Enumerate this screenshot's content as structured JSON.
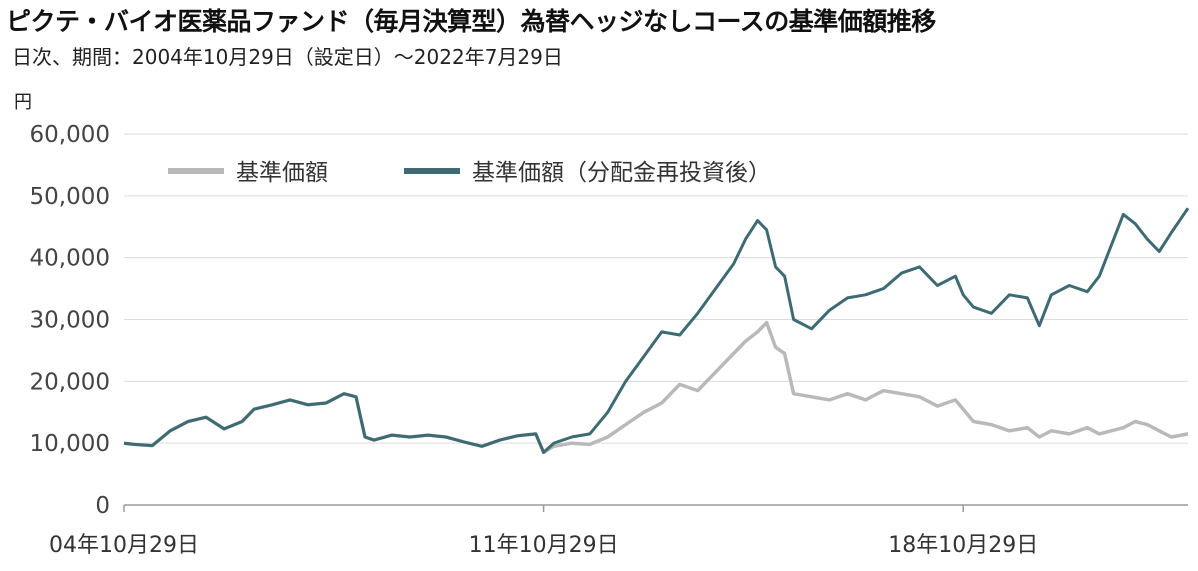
{
  "title": "ピクテ・バイオ医薬品ファンド（毎月決算型）為替ヘッジなしコースの基準価額推移",
  "subtitle": "日次、期間：2004年10月29日（設定日）～2022年7月29日",
  "colors": {
    "nav": "#b9b9b9",
    "reinvested": "#3e6b73",
    "grid": "#dcdcdc",
    "axis": "#9a9a9a"
  },
  "chart_data": {
    "type": "line",
    "title": "ピクテ・バイオ医薬品ファンド（毎月決算型）為替ヘッジなしコースの基準価額推移",
    "ylabel": "円",
    "ylim": [
      0,
      60000
    ],
    "yticks": [
      0,
      10000,
      20000,
      30000,
      40000,
      50000,
      60000
    ],
    "ytick_labels": [
      "0",
      "10,000",
      "20,000",
      "30,000",
      "40,000",
      "50,000",
      "60,000"
    ],
    "xlim": [
      2004.83,
      2022.58
    ],
    "xticks": [
      2004.83,
      2011.83,
      2018.83
    ],
    "xtick_labels": [
      "04年10月29日",
      "11年10月29日",
      "18年10月29日"
    ],
    "grid": true,
    "legend_position": "top-left",
    "x": [
      2004.83,
      2005.0,
      2005.3,
      2005.6,
      2005.9,
      2006.2,
      2006.5,
      2006.8,
      2007.0,
      2007.3,
      2007.6,
      2007.9,
      2008.2,
      2008.5,
      2008.7,
      2008.85,
      2009.0,
      2009.3,
      2009.6,
      2009.9,
      2010.2,
      2010.5,
      2010.8,
      2011.1,
      2011.4,
      2011.7,
      2011.83,
      2012.0,
      2012.3,
      2012.6,
      2012.9,
      2013.2,
      2013.5,
      2013.8,
      2014.1,
      2014.4,
      2014.7,
      2015.0,
      2015.2,
      2015.4,
      2015.55,
      2015.7,
      2015.85,
      2016.0,
      2016.3,
      2016.6,
      2016.9,
      2017.2,
      2017.5,
      2017.8,
      2018.1,
      2018.4,
      2018.7,
      2018.83,
      2019.0,
      2019.3,
      2019.6,
      2019.9,
      2020.1,
      2020.3,
      2020.6,
      2020.9,
      2021.1,
      2021.3,
      2021.5,
      2021.7,
      2021.9,
      2022.1,
      2022.3,
      2022.58
    ],
    "series": [
      {
        "name": "基準価額",
        "values": [
          10000,
          9800,
          9600,
          12000,
          13500,
          14200,
          12300,
          13500,
          15500,
          16200,
          17000,
          16200,
          16500,
          18000,
          17500,
          11000,
          10500,
          11300,
          11000,
          11300,
          11000,
          10200,
          9500,
          10500,
          11200,
          11500,
          8500,
          9500,
          10000,
          9800,
          11000,
          13000,
          15000,
          16500,
          19500,
          18500,
          21500,
          24500,
          26500,
          28000,
          29500,
          25500,
          24500,
          18000,
          17500,
          17000,
          18000,
          17000,
          18500,
          18000,
          17500,
          16000,
          17000,
          15500,
          13500,
          13000,
          12000,
          12500,
          11000,
          12000,
          11500,
          12500,
          11500,
          12000,
          12500,
          13500,
          13000,
          12000,
          11000,
          11500
        ]
      },
      {
        "name": "基準価額（分配金再投資後）",
        "values": [
          10000,
          9800,
          9600,
          12000,
          13500,
          14200,
          12300,
          13500,
          15500,
          16200,
          17000,
          16200,
          16500,
          18000,
          17500,
          11000,
          10500,
          11300,
          11000,
          11300,
          11000,
          10200,
          9500,
          10500,
          11200,
          11500,
          8500,
          10000,
          11000,
          11500,
          15000,
          20000,
          24000,
          28000,
          27500,
          31000,
          35000,
          39000,
          43000,
          46000,
          44500,
          38500,
          37000,
          30000,
          28500,
          31500,
          33500,
          34000,
          35000,
          37500,
          38500,
          35500,
          37000,
          34000,
          32000,
          31000,
          34000,
          33500,
          29000,
          34000,
          35500,
          34500,
          37000,
          42000,
          47000,
          45500,
          43000,
          41000,
          44000,
          48000
        ]
      }
    ]
  }
}
